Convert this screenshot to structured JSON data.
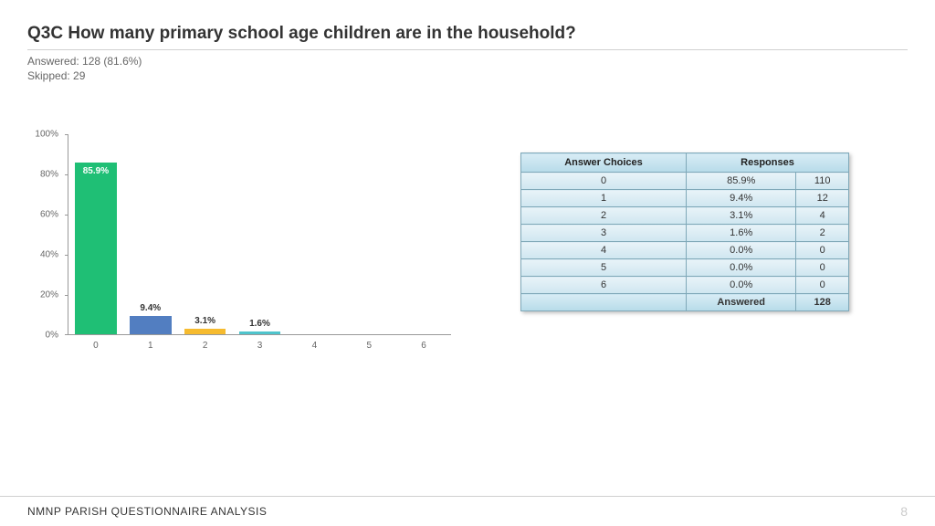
{
  "header": {
    "title": "Q3C  How many primary school age children are in the household?",
    "answered_line": "Answered: 128 (81.6%)",
    "skipped_line": "Skipped: 29"
  },
  "chart": {
    "type": "bar",
    "ylim": [
      0,
      100
    ],
    "ytick_step": 20,
    "y_ticks": [
      "0%",
      "20%",
      "40%",
      "60%",
      "80%",
      "100%"
    ],
    "categories": [
      "0",
      "1",
      "2",
      "3",
      "4",
      "5",
      "6"
    ],
    "values": [
      85.9,
      9.4,
      3.1,
      1.6,
      0.0,
      0.0,
      0.0
    ],
    "value_labels": [
      "85.9%",
      "9.4%",
      "3.1%",
      "1.6%",
      "",
      "",
      ""
    ],
    "bar_colors": [
      "#1fbf75",
      "#527ec1",
      "#f6bb2f",
      "#4ec4cc",
      "#000000",
      "#000000",
      "#000000"
    ],
    "label_inside": [
      true,
      false,
      false,
      false,
      false,
      false,
      false
    ],
    "axis_color": "#999999",
    "label_fontsize": 10
  },
  "table": {
    "header_choices": "Answer Choices",
    "header_responses": "Responses",
    "rows": [
      {
        "choice": "0",
        "pct": "85.9%",
        "count": "110"
      },
      {
        "choice": "1",
        "pct": "9.4%",
        "count": "12"
      },
      {
        "choice": "2",
        "pct": "3.1%",
        "count": "4"
      },
      {
        "choice": "3",
        "pct": "1.6%",
        "count": "2"
      },
      {
        "choice": "4",
        "pct": "0.0%",
        "count": "0"
      },
      {
        "choice": "5",
        "pct": "0.0%",
        "count": "0"
      },
      {
        "choice": "6",
        "pct": "0.0%",
        "count": "0"
      }
    ],
    "footer_label": "Answered",
    "footer_value": "128"
  },
  "footer": {
    "text": "NMNP PARISH QUESTIONNAIRE ANALYSIS",
    "page": "8"
  }
}
